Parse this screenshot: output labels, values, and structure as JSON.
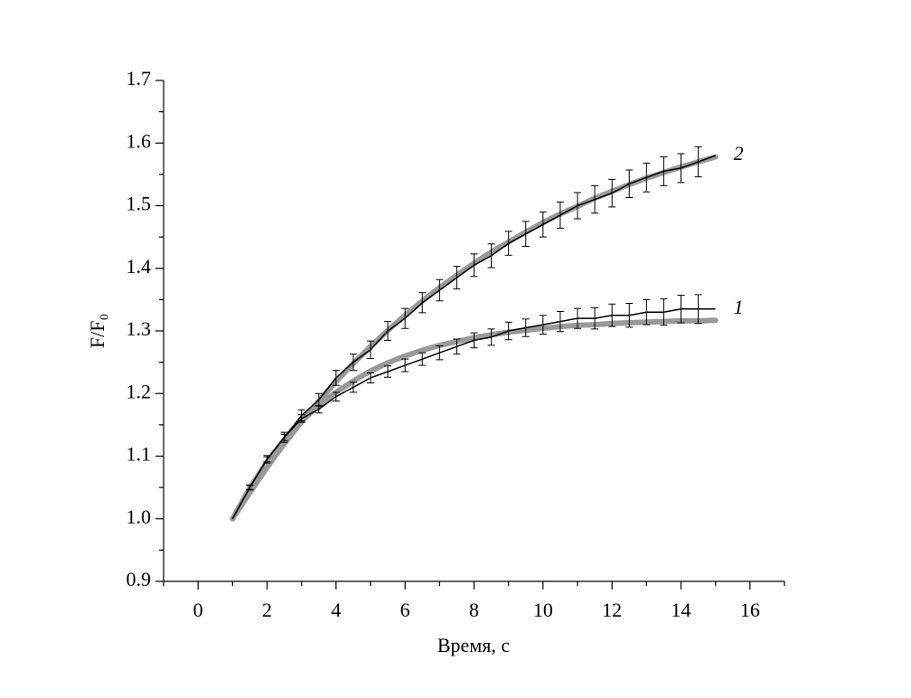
{
  "chart_data": {
    "type": "line",
    "x_label": "Время, с",
    "y_label": "F/F₀",
    "xlim": [
      -1,
      17
    ],
    "xticks": [
      0,
      2,
      4,
      6,
      8,
      10,
      12,
      14,
      16
    ],
    "xminorticks": [
      -1,
      1,
      3,
      5,
      7,
      9,
      11,
      13,
      15,
      17
    ],
    "ylim": [
      0.9,
      1.7
    ],
    "yticks": [
      {
        "value": 0.9,
        "label": "0.9"
      },
      {
        "value": 1.0,
        "label": "1.0"
      },
      {
        "value": 1.1,
        "label": "1.1"
      },
      {
        "value": 1.2,
        "label": "1.2"
      },
      {
        "value": 1.3,
        "label": "1.3"
      },
      {
        "value": 1.4,
        "label": "1.4"
      },
      {
        "value": 1.5,
        "label": "1.5"
      },
      {
        "value": 1.6,
        "label": "1.6"
      },
      {
        "value": 1.7,
        "label": "1.7"
      }
    ],
    "yminorticks": [
      0.95,
      1.05,
      1.15,
      1.25,
      1.35,
      1.45,
      1.55,
      1.65
    ],
    "x": [
      1,
      1.5,
      2,
      2.5,
      3,
      3.5,
      4,
      4.5,
      5,
      5.5,
      6,
      6.5,
      7,
      7.5,
      8,
      8.5,
      9,
      9.5,
      10,
      10.5,
      11,
      11.5,
      12,
      12.5,
      13,
      13.5,
      14,
      14.5,
      15
    ],
    "series": [
      {
        "name": "1",
        "color": "#000000",
        "values": [
          1.0,
          1.05,
          1.095,
          1.13,
          1.16,
          1.175,
          1.195,
          1.21,
          1.225,
          1.235,
          1.245,
          1.255,
          1.265,
          1.275,
          1.285,
          1.29,
          1.3,
          1.305,
          1.31,
          1.315,
          1.32,
          1.32,
          1.325,
          1.325,
          1.33,
          1.33,
          1.335,
          1.335,
          1.335
        ],
        "errors": [
          null,
          0.003,
          0.004,
          0.005,
          0.006,
          0.006,
          0.007,
          0.008,
          0.008,
          0.009,
          0.01,
          0.01,
          0.011,
          0.012,
          0.012,
          0.013,
          0.014,
          0.014,
          0.015,
          0.016,
          0.016,
          0.017,
          0.018,
          0.019,
          0.02,
          0.021,
          0.022,
          0.023,
          null
        ],
        "fit": [
          1.0,
          1.049,
          1.091,
          1.126,
          1.156,
          1.181,
          1.202,
          1.22,
          1.236,
          1.249,
          1.26,
          1.269,
          1.277,
          1.283,
          1.289,
          1.294,
          1.298,
          1.301,
          1.304,
          1.307,
          1.309,
          1.31,
          1.312,
          1.313,
          1.314,
          1.315,
          1.316,
          1.316,
          1.317
        ]
      },
      {
        "name": "2",
        "color": "#000000",
        "values": [
          1.0,
          1.05,
          1.095,
          1.13,
          1.165,
          1.19,
          1.225,
          1.25,
          1.27,
          1.3,
          1.32,
          1.345,
          1.365,
          1.385,
          1.405,
          1.42,
          1.44,
          1.455,
          1.47,
          1.485,
          1.5,
          1.51,
          1.52,
          1.535,
          1.545,
          1.555,
          1.56,
          1.57,
          1.58
        ],
        "errors": [
          null,
          0.004,
          0.006,
          0.008,
          0.009,
          0.01,
          0.012,
          0.013,
          0.014,
          0.015,
          0.016,
          0.016,
          0.017,
          0.018,
          0.018,
          0.019,
          0.019,
          0.02,
          0.02,
          0.021,
          0.021,
          0.022,
          0.022,
          0.022,
          0.023,
          0.023,
          0.023,
          0.024,
          null
        ],
        "fit": [
          1.0,
          1.042,
          1.082,
          1.12,
          1.155,
          1.188,
          1.219,
          1.248,
          1.275,
          1.301,
          1.325,
          1.348,
          1.369,
          1.389,
          1.408,
          1.426,
          1.442,
          1.458,
          1.473,
          1.487,
          1.499,
          1.512,
          1.523,
          1.534,
          1.544,
          1.553,
          1.562,
          1.57,
          1.578
        ]
      }
    ],
    "fit_color": "#999999"
  }
}
